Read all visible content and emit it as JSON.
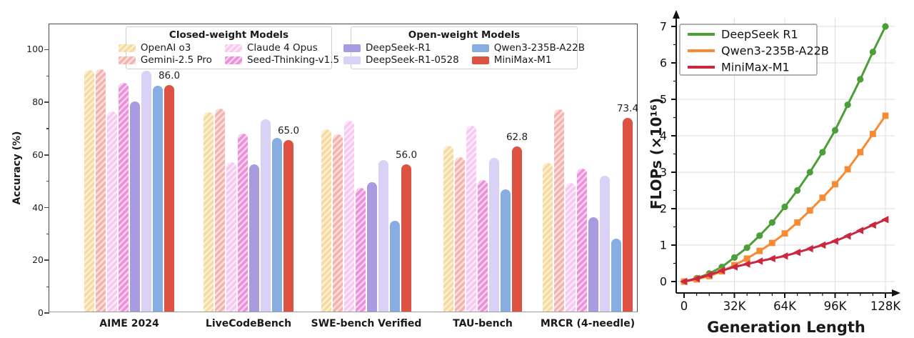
{
  "chart_data": [
    {
      "type": "bar",
      "panel": "left",
      "ylabel": "Accuracy (%)",
      "ylim": [
        0,
        109.6
      ],
      "yticks": [
        "0",
        "20",
        "40",
        "60",
        "80",
        "100"
      ],
      "ytick_values": [
        0,
        20,
        40,
        60,
        80,
        100
      ],
      "grid": false,
      "categories": [
        "AIME 2024",
        "LiveCodeBench",
        "SWE-bench Verified",
        "TAU-bench",
        "MRCR (4-needle)"
      ],
      "series": [
        {
          "name": "OpenAI o3",
          "color": "#F7DA9E",
          "hatched": true,
          "values": [
            91.6,
            75.8,
            69.1,
            62.9,
            56.5
          ]
        },
        {
          "name": "Gemini-2.5 Pro",
          "color": "#F5B2AD",
          "hatched": true,
          "values": [
            92.0,
            77.1,
            67.2,
            58.5,
            76.8
          ]
        },
        {
          "name": "Claude 4 Opus",
          "color": "#F8C8F0",
          "hatched": true,
          "values": [
            76.0,
            56.6,
            72.5,
            70.5,
            48.9
          ]
        },
        {
          "name": "Seed-Thinking-v1.5",
          "color": "#EE8FD9",
          "hatched": true,
          "values": [
            86.7,
            67.5,
            47.0,
            49.9,
            54.3
          ]
        },
        {
          "name": "DeepSeek-R1",
          "color": "#A89BE0",
          "hatched": false,
          "values": [
            79.8,
            55.9,
            49.2,
            null,
            35.8
          ]
        },
        {
          "name": "DeepSeek-R1-0528",
          "color": "#D9D1F6",
          "hatched": false,
          "values": [
            91.4,
            73.1,
            57.6,
            58.4,
            51.5
          ]
        },
        {
          "name": "Qwen3-235B-A22B",
          "color": "#88ADE2",
          "hatched": false,
          "values": [
            85.7,
            65.9,
            34.4,
            46.5,
            27.7
          ]
        },
        {
          "name": "MiniMax-M1",
          "color": "#DE5244",
          "hatched": false,
          "values": [
            86.0,
            65.0,
            56.0,
            62.8,
            73.4
          ]
        }
      ],
      "annotated_series": "MiniMax-M1",
      "annotations": [
        "86.0",
        "65.0",
        "56.0",
        "62.8",
        "73.4"
      ],
      "legend_groups": [
        {
          "title": "Closed-weight Models",
          "entries": [
            "OpenAI o3",
            "Claude 4 Opus",
            "Gemini-2.5 Pro",
            "Seed-Thinking-v1.5"
          ]
        },
        {
          "title": "Open-weight Models",
          "entries": [
            "DeepSeek-R1",
            "Qwen3-235B-A22B",
            "DeepSeek-R1-0528",
            "MiniMax-M1"
          ]
        }
      ]
    },
    {
      "type": "line",
      "panel": "right",
      "xlabel": "Generation Length",
      "ylabel": "FLOPs (×10¹⁶)",
      "xlim": [
        0,
        128
      ],
      "ylim": [
        0,
        7
      ],
      "grid": true,
      "legend_position": "upper-left",
      "xticks": [
        {
          "value": 0,
          "label": "0"
        },
        {
          "value": 32,
          "label": "32K"
        },
        {
          "value": 64,
          "label": "64K"
        },
        {
          "value": 96,
          "label": "96K"
        },
        {
          "value": 128,
          "label": "128K"
        }
      ],
      "yticks": [
        0,
        1,
        2,
        3,
        4,
        5,
        6,
        7
      ],
      "x": [
        0,
        8,
        16,
        24,
        32,
        40,
        48,
        56,
        64,
        72,
        80,
        88,
        96,
        104,
        112,
        120,
        128
      ],
      "series": [
        {
          "name": "DeepSeek R1",
          "color": "#4C9F38",
          "marker": "circle",
          "values": [
            0.0,
            0.09,
            0.22,
            0.4,
            0.66,
            0.93,
            1.26,
            1.62,
            2.05,
            2.5,
            3.0,
            3.55,
            4.15,
            4.85,
            5.55,
            6.3,
            7.0
          ]
        },
        {
          "name": "Qwen3-235B-A22B",
          "color": "#F68B33",
          "marker": "square",
          "values": [
            0.0,
            0.06,
            0.15,
            0.28,
            0.45,
            0.63,
            0.84,
            1.06,
            1.32,
            1.62,
            1.95,
            2.3,
            2.67,
            3.08,
            3.55,
            4.05,
            4.55
          ]
        },
        {
          "name": "MiniMax-M1",
          "color": "#C9283E",
          "marker": "triangle-left",
          "values": [
            0.0,
            0.08,
            0.18,
            0.3,
            0.4,
            0.48,
            0.56,
            0.63,
            0.7,
            0.8,
            0.9,
            1.0,
            1.11,
            1.25,
            1.4,
            1.55,
            1.7
          ]
        }
      ]
    }
  ]
}
